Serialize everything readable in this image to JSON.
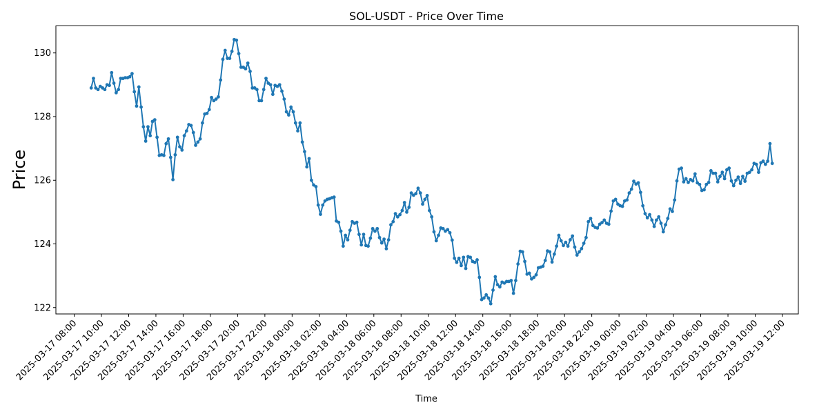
{
  "chart_data": {
    "type": "line",
    "title": "SOL-USDT - Price Over Time",
    "xlabel": "Time",
    "ylabel": "Price",
    "x_range": [
      "2025-03-17 08:00",
      "2025-03-19 12:00"
    ],
    "ylim": [
      121.8,
      130.85
    ],
    "x_ticks": [
      "2025-03-17 08:00",
      "2025-03-17 10:00",
      "2025-03-17 12:00",
      "2025-03-17 14:00",
      "2025-03-17 16:00",
      "2025-03-17 18:00",
      "2025-03-17 20:00",
      "2025-03-17 22:00",
      "2025-03-18 00:00",
      "2025-03-18 02:00",
      "2025-03-18 04:00",
      "2025-03-18 06:00",
      "2025-03-18 08:00",
      "2025-03-18 10:00",
      "2025-03-18 12:00",
      "2025-03-18 14:00",
      "2025-03-18 16:00",
      "2025-03-18 18:00",
      "2025-03-18 20:00",
      "2025-03-18 22:00",
      "2025-03-19 00:00",
      "2025-03-19 02:00",
      "2025-03-19 04:00",
      "2025-03-19 06:00",
      "2025-03-19 08:00",
      "2025-03-19 10:00",
      "2025-03-19 12:00"
    ],
    "y_ticks": [
      122,
      124,
      126,
      128,
      130
    ],
    "grid": false,
    "legend": "none",
    "series": [
      {
        "color": "#1f77b4",
        "start": "2025-03-17 09:15",
        "interval_minutes": 10,
        "values": [
          128.9,
          129.2,
          128.9,
          128.85,
          128.95,
          128.9,
          128.85,
          129.0,
          128.98,
          129.38,
          129.05,
          128.75,
          128.85,
          129.2,
          129.2,
          129.22,
          129.22,
          129.25,
          129.35,
          128.78,
          128.33,
          128.93,
          128.3,
          127.68,
          127.23,
          127.68,
          127.4,
          127.85,
          127.9,
          127.35,
          126.78,
          126.8,
          126.78,
          127.15,
          127.3,
          126.72,
          126.02,
          126.8,
          127.35,
          127.05,
          126.95,
          127.4,
          127.55,
          127.75,
          127.72,
          127.5,
          127.1,
          127.2,
          127.3,
          127.8,
          128.08,
          128.1,
          128.22,
          128.6,
          128.5,
          128.55,
          128.62,
          129.15,
          129.8,
          130.08,
          129.83,
          129.83,
          130.05,
          130.42,
          130.4,
          129.98,
          129.55,
          129.55,
          129.5,
          129.68,
          129.42,
          128.9,
          128.9,
          128.85,
          128.5,
          128.5,
          128.85,
          129.2,
          129.05,
          129.0,
          128.7,
          128.98,
          128.95,
          129.0,
          128.8,
          128.55,
          128.15,
          128.05,
          128.3,
          128.15,
          127.8,
          127.55,
          127.8,
          127.2,
          126.9,
          126.42,
          126.68,
          126.0,
          125.85,
          125.8,
          125.22,
          124.93,
          125.22,
          125.35,
          125.4,
          125.42,
          125.45,
          125.47,
          124.72,
          124.68,
          124.4,
          123.93,
          124.27,
          124.13,
          124.43,
          124.7,
          124.65,
          124.68,
          124.3,
          123.97,
          124.3,
          123.95,
          123.93,
          124.18,
          124.48,
          124.4,
          124.48,
          124.2,
          124.03,
          124.15,
          123.85,
          124.13,
          124.6,
          124.7,
          124.95,
          124.85,
          124.92,
          125.05,
          125.3,
          125.0,
          125.15,
          125.6,
          125.53,
          125.58,
          125.75,
          125.6,
          125.25,
          125.4,
          125.52,
          125.05,
          124.85,
          124.38,
          124.1,
          124.27,
          124.5,
          124.48,
          124.4,
          124.45,
          124.35,
          124.12,
          123.55,
          123.42,
          123.55,
          123.32,
          123.58,
          123.23,
          123.6,
          123.58,
          123.45,
          123.42,
          123.5,
          122.95,
          122.25,
          122.3,
          122.4,
          122.3,
          122.12,
          122.55,
          122.97,
          122.72,
          122.65,
          122.8,
          122.77,
          122.82,
          122.82,
          122.85,
          122.45,
          122.85,
          123.37,
          123.77,
          123.75,
          123.45,
          123.05,
          123.08,
          122.9,
          122.95,
          123.03,
          123.25,
          123.27,
          123.3,
          123.48,
          123.78,
          123.75,
          123.43,
          123.68,
          123.93,
          124.27,
          124.1,
          123.95,
          124.05,
          123.93,
          124.13,
          124.25,
          123.9,
          123.65,
          123.75,
          123.85,
          124.02,
          124.2,
          124.7,
          124.8,
          124.58,
          124.52,
          124.5,
          124.62,
          124.67,
          124.75,
          124.65,
          124.62,
          125.03,
          125.35,
          125.4,
          125.25,
          125.2,
          125.18,
          125.35,
          125.38,
          125.6,
          125.72,
          125.97,
          125.88,
          125.92,
          125.62,
          125.2,
          124.95,
          124.82,
          124.92,
          124.75,
          124.55,
          124.75,
          124.85,
          124.65,
          124.38,
          124.6,
          124.8,
          125.1,
          125.02,
          125.38,
          125.98,
          126.35,
          126.38,
          125.95,
          126.05,
          125.93,
          126.02,
          125.98,
          126.2,
          125.92,
          125.87,
          125.68,
          125.7,
          125.87,
          125.93,
          126.3,
          126.22,
          126.22,
          125.95,
          126.12,
          126.25,
          126.05,
          126.33,
          126.38,
          125.98,
          125.83,
          126.0,
          126.1,
          125.9,
          126.12,
          125.97,
          126.22,
          126.25,
          126.33,
          126.53,
          126.5,
          126.25,
          126.55,
          126.6,
          126.5,
          126.6,
          127.15,
          126.53
        ]
      }
    ]
  }
}
